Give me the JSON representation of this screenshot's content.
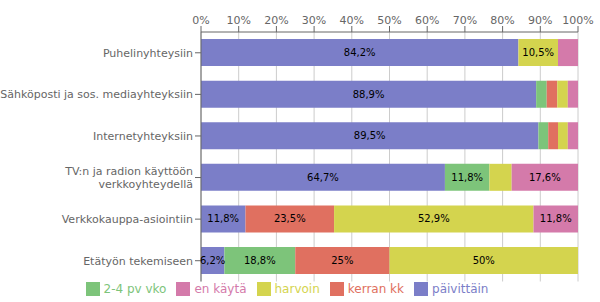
{
  "chart_data": {
    "type": "bar",
    "orientation": "horizontal",
    "stacked": true,
    "data_labels": true,
    "grid": true,
    "legend": "bottom",
    "categories": [
      "Etätyön tekemiseen",
      "Verkkokauppa-asiointiin",
      "TV:n ja radion käyttöön\nverkkoyhteydellä",
      "Internetyhteyksiin",
      "Sähköposti ja sos. mediayhteyksiin",
      "Puhelinyhteysiin"
    ],
    "series": [
      {
        "name": "päivittäin",
        "color": "#7b7ec8",
        "values": [
          6.2,
          11.8,
          64.7,
          89.5,
          88.9,
          84.2
        ],
        "value_labels": [
          "6,2%",
          "11,8%",
          "64,7%",
          "89,5%",
          "88,9%",
          "84,2%"
        ]
      },
      {
        "name": "2-4 pv vko",
        "color": "#7dc47a",
        "values": [
          18.8,
          0.0,
          11.8,
          2.6,
          2.8,
          0.0
        ],
        "value_labels": [
          "18,8%",
          null,
          "11,8%",
          null,
          null,
          null
        ]
      },
      {
        "name": "kerran kk",
        "color": "#e07060",
        "values": [
          25.0,
          23.5,
          0.0,
          2.6,
          2.8,
          0.0
        ],
        "value_labels": [
          "25%",
          "23,5%",
          null,
          null,
          null,
          null
        ]
      },
      {
        "name": "harvoin",
        "color": "#d4d44e",
        "values": [
          50.0,
          52.9,
          5.9,
          2.6,
          2.8,
          10.5
        ],
        "value_labels": [
          "50%",
          "52,9%",
          null,
          null,
          null,
          "10,5%"
        ]
      },
      {
        "name": "en käytä",
        "color": "#d47aaa",
        "values": [
          0.0,
          11.8,
          17.6,
          2.7,
          2.7,
          5.3
        ],
        "value_labels": [
          null,
          "11,8%",
          "17,6%",
          null,
          null,
          null
        ]
      }
    ],
    "xlim": [
      0,
      100
    ],
    "xticks": [
      {
        "value": 0,
        "label": "0%"
      },
      {
        "value": 10,
        "label": "10%"
      },
      {
        "value": 20,
        "label": "20%"
      },
      {
        "value": 30,
        "label": "30%"
      },
      {
        "value": 40,
        "label": "40%"
      },
      {
        "value": 50,
        "label": "50%"
      },
      {
        "value": 60,
        "label": "60%"
      },
      {
        "value": 70,
        "label": "70%"
      },
      {
        "value": 80,
        "label": "80%"
      },
      {
        "value": 90,
        "label": "90%"
      },
      {
        "value": 100,
        "label": "100%"
      }
    ]
  }
}
